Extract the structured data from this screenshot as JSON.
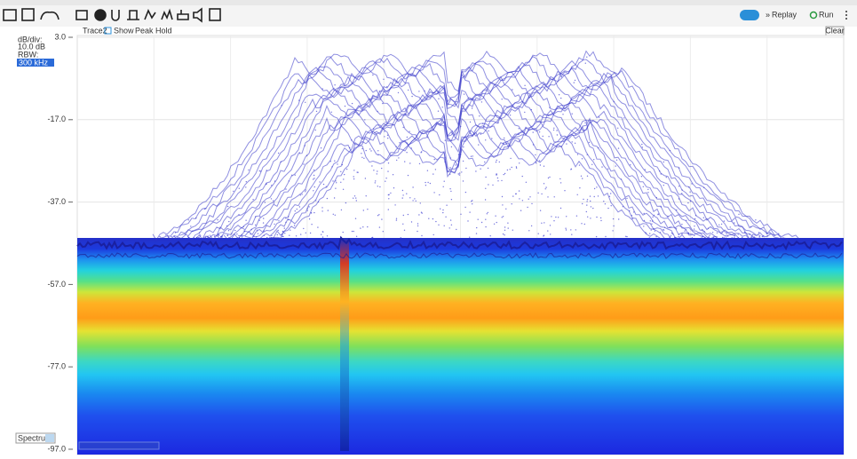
{
  "toolbar": {
    "replay": "Replay",
    "run": "Run"
  },
  "trace_bar": {
    "trace": "Trace2",
    "show": "Show",
    "hold": "Peak Hold",
    "clear": "Clear"
  },
  "side_panel": {
    "scale_label": "dB/div:",
    "scale_value": "10.0 dB",
    "rbw_label": "RBW:",
    "rbw_value": "300 kHz",
    "display": "Spectrum"
  },
  "plot": {
    "ylim": [
      3,
      -97
    ],
    "yticks": [
      {
        "value": 3,
        "label": "3.0"
      },
      {
        "value": -17,
        "label": "-17.0"
      },
      {
        "value": -37,
        "label": "-37.0"
      },
      {
        "value": -57,
        "label": "-57.0"
      },
      {
        "value": -77,
        "label": "-77.0"
      },
      {
        "value": -97,
        "label": "-97.0"
      }
    ],
    "grid": true
  }
}
